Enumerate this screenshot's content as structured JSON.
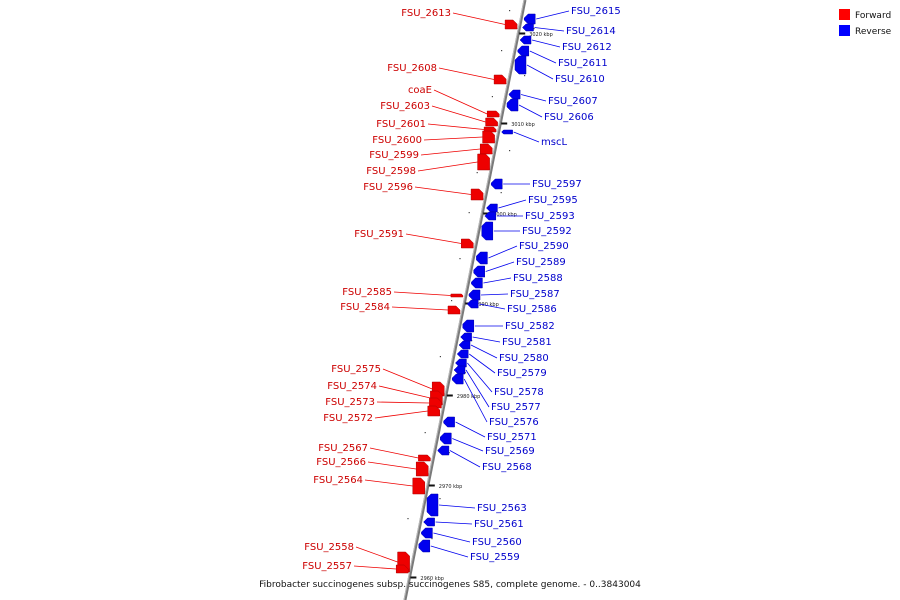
{
  "colors": {
    "forward": "#ff0000",
    "reverse": "#0000ff",
    "axis": "#888888"
  },
  "legend": {
    "forward": "Forward",
    "reverse": "Reverse"
  },
  "caption": "Fibrobacter succinogenes subsp. succinogenes S85, complete genome. - 0..3843004",
  "ticks": [
    "3020 kbp",
    "3010 kbp",
    "3000 kbp",
    "2990 kbp",
    "2980 kbp",
    "2970 kbp",
    "2960 kbp"
  ],
  "forward_genes": [
    "FSU_2613",
    "FSU_2608",
    "coaE",
    "FSU_2603",
    "FSU_2601",
    "FSU_2600",
    "FSU_2599",
    "FSU_2598",
    "FSU_2596",
    "FSU_2591",
    "FSU_2585",
    "FSU_2584",
    "FSU_2575",
    "FSU_2574",
    "FSU_2573",
    "FSU_2572",
    "FSU_2567",
    "FSU_2566",
    "FSU_2564",
    "FSU_2558",
    "FSU_2557"
  ],
  "reverse_genes": [
    "FSU_2615",
    "FSU_2614",
    "FSU_2612",
    "FSU_2611",
    "FSU_2610",
    "FSU_2607",
    "FSU_2606",
    "mscL",
    "FSU_2597",
    "FSU_2595",
    "FSU_2593",
    "FSU_2592",
    "FSU_2590",
    "FSU_2589",
    "FSU_2588",
    "FSU_2587",
    "FSU_2586",
    "FSU_2582",
    "FSU_2581",
    "FSU_2580",
    "FSU_2579",
    "FSU_2578",
    "FSU_2577",
    "FSU_2576",
    "FSU_2571",
    "FSU_2569",
    "FSU_2568",
    "FSU_2563",
    "FSU_2561",
    "FSU_2560",
    "FSU_2559"
  ]
}
